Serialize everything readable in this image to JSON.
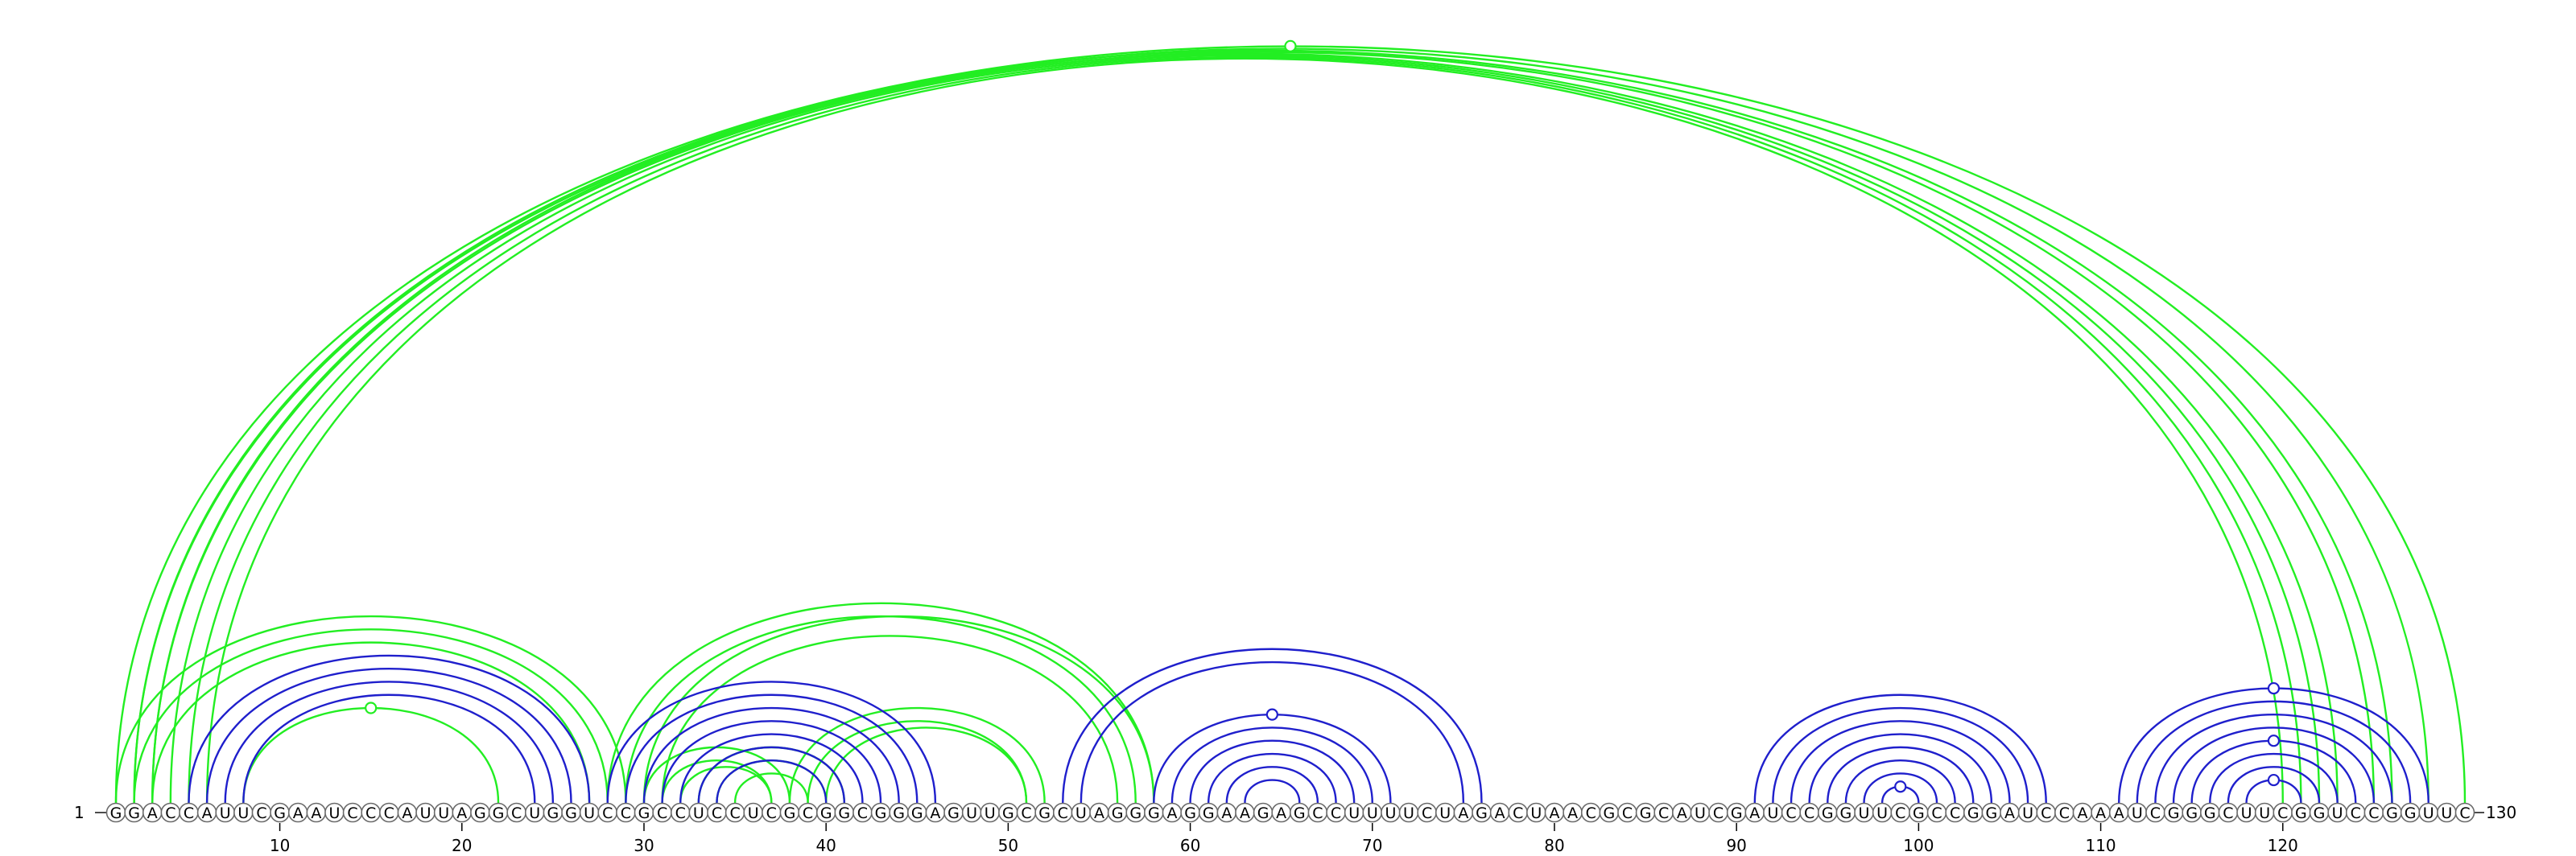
{
  "sequence": "GGACCAUUCGAAUCCCAUUAGGCUGGUCCGCCUCCUCGCGGCGGGAGUUGCGCUAGGGAGGAAGAGCCUUUUCUAGACUAACGCGCAUCGAUCCGGUUCGCCGGAUCCAAAUCGGGCUUCGGUCCGGUUC",
  "start_label": "1",
  "end_label": "130",
  "colors": {
    "green": "#22ee22",
    "blue": "#1f1fcc"
  },
  "ticks": [
    10,
    20,
    30,
    40,
    50,
    60,
    70,
    80,
    90,
    100,
    110,
    120
  ],
  "arcs": [
    {
      "i": 1,
      "j": 130,
      "color": "green"
    },
    {
      "i": 2,
      "j": 128,
      "color": "green"
    },
    {
      "i": 2,
      "j": 126,
      "color": "green"
    },
    {
      "i": 3,
      "j": 125,
      "color": "green"
    },
    {
      "i": 3,
      "j": 123,
      "color": "green"
    },
    {
      "i": 4,
      "j": 122,
      "color": "green"
    },
    {
      "i": 5,
      "j": 121,
      "color": "green"
    },
    {
      "i": 6,
      "j": 120,
      "color": "green"
    },
    {
      "i": 1,
      "j": 29,
      "color": "green"
    },
    {
      "i": 2,
      "j": 28,
      "color": "green"
    },
    {
      "i": 3,
      "j": 27,
      "color": "green"
    },
    {
      "i": 8,
      "j": 22,
      "color": "green"
    },
    {
      "i": 5,
      "j": 27,
      "color": "blue"
    },
    {
      "i": 6,
      "j": 26,
      "color": "blue"
    },
    {
      "i": 7,
      "j": 25,
      "color": "blue"
    },
    {
      "i": 8,
      "j": 24,
      "color": "blue"
    },
    {
      "i": 28,
      "j": 58,
      "color": "green"
    },
    {
      "i": 29,
      "j": 57,
      "color": "green"
    },
    {
      "i": 31,
      "j": 56,
      "color": "green"
    },
    {
      "i": 30,
      "j": 58,
      "color": "green"
    },
    {
      "i": 30,
      "j": 38,
      "color": "green"
    },
    {
      "i": 31,
      "j": 37,
      "color": "green"
    },
    {
      "i": 32,
      "j": 37,
      "color": "green"
    },
    {
      "i": 33,
      "j": 41,
      "color": "green"
    },
    {
      "i": 34,
      "j": 40,
      "color": "green"
    },
    {
      "i": 35,
      "j": 39,
      "color": "green"
    },
    {
      "i": 38,
      "j": 52,
      "color": "green"
    },
    {
      "i": 39,
      "j": 51,
      "color": "green"
    },
    {
      "i": 40,
      "j": 51,
      "color": "green"
    },
    {
      "i": 28,
      "j": 46,
      "color": "blue"
    },
    {
      "i": 29,
      "j": 45,
      "color": "blue"
    },
    {
      "i": 30,
      "j": 44,
      "color": "blue"
    },
    {
      "i": 31,
      "j": 43,
      "color": "blue"
    },
    {
      "i": 32,
      "j": 42,
      "color": "blue"
    },
    {
      "i": 33,
      "j": 41,
      "color": "blue"
    },
    {
      "i": 34,
      "j": 40,
      "color": "blue"
    },
    {
      "i": 53,
      "j": 76,
      "color": "blue"
    },
    {
      "i": 54,
      "j": 75,
      "color": "blue"
    },
    {
      "i": 58,
      "j": 71,
      "color": "blue"
    },
    {
      "i": 59,
      "j": 70,
      "color": "blue"
    },
    {
      "i": 60,
      "j": 69,
      "color": "blue"
    },
    {
      "i": 61,
      "j": 68,
      "color": "blue"
    },
    {
      "i": 62,
      "j": 67,
      "color": "blue"
    },
    {
      "i": 63,
      "j": 66,
      "color": "blue"
    },
    {
      "i": 91,
      "j": 107,
      "color": "blue"
    },
    {
      "i": 92,
      "j": 106,
      "color": "blue"
    },
    {
      "i": 93,
      "j": 105,
      "color": "blue"
    },
    {
      "i": 94,
      "j": 104,
      "color": "blue"
    },
    {
      "i": 95,
      "j": 103,
      "color": "blue"
    },
    {
      "i": 96,
      "j": 102,
      "color": "blue"
    },
    {
      "i": 97,
      "j": 101,
      "color": "blue"
    },
    {
      "i": 98,
      "j": 100,
      "color": "blue"
    },
    {
      "i": 111,
      "j": 128,
      "color": "blue"
    },
    {
      "i": 112,
      "j": 127,
      "color": "blue"
    },
    {
      "i": 113,
      "j": 126,
      "color": "blue"
    },
    {
      "i": 114,
      "j": 125,
      "color": "blue"
    },
    {
      "i": 115,
      "j": 124,
      "color": "blue"
    },
    {
      "i": 116,
      "j": 123,
      "color": "blue"
    },
    {
      "i": 117,
      "j": 122,
      "color": "blue"
    },
    {
      "i": 118,
      "j": 121,
      "color": "blue"
    }
  ],
  "markers": [
    {
      "at": 65.5,
      "arc": [
        1,
        130
      ],
      "color": "green"
    },
    {
      "at": 15,
      "arc": [
        8,
        22
      ],
      "color": "green"
    },
    {
      "at": 64.5,
      "arc": [
        58,
        71
      ],
      "color": "blue"
    },
    {
      "at": 99,
      "arc": [
        98,
        100
      ],
      "color": "blue"
    },
    {
      "at": 119.5,
      "arc": [
        111,
        128
      ],
      "color": "blue"
    },
    {
      "at": 119.5,
      "arc": [
        115,
        124
      ],
      "color": "blue"
    },
    {
      "at": 119.5,
      "arc": [
        118,
        121
      ],
      "color": "blue"
    }
  ]
}
